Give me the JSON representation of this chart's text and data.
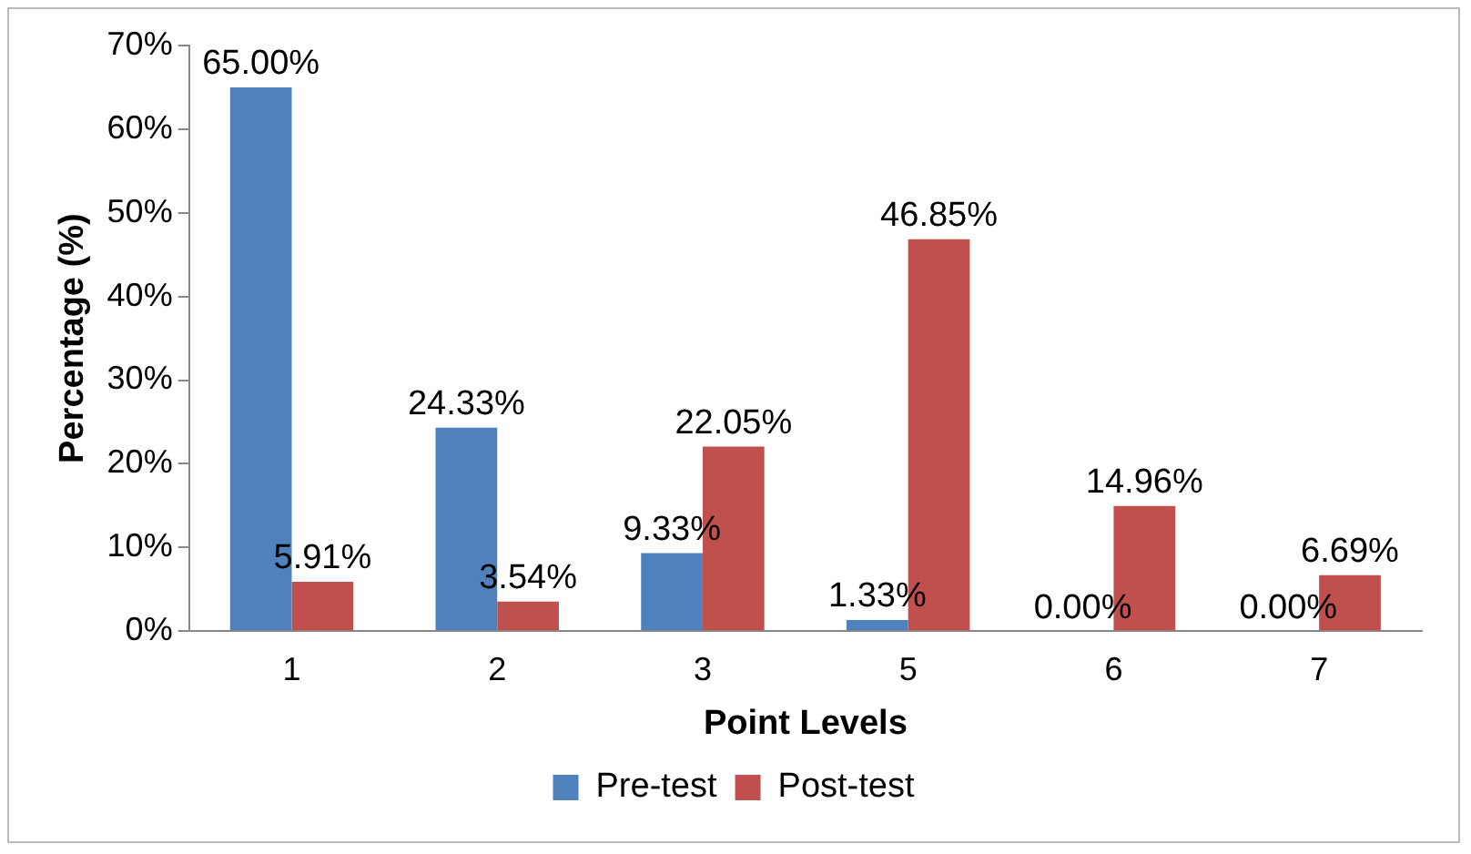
{
  "chart_data": {
    "type": "bar",
    "xlabel": "Point Levels",
    "ylabel": "Percentage (%)",
    "categories": [
      "1",
      "2",
      "3",
      "5",
      "6",
      "7"
    ],
    "series": [
      {
        "name": "Pre-test",
        "color": "#4f81bd",
        "values": [
          65.0,
          24.33,
          9.33,
          1.33,
          0.0,
          0.0
        ],
        "value_labels": [
          "65.00%",
          "24.33%",
          "9.33%",
          "1.33%",
          "0.00%",
          "0.00%"
        ]
      },
      {
        "name": "Post-test",
        "color": "#c0504d",
        "values": [
          5.91,
          3.54,
          22.05,
          46.85,
          14.96,
          6.69
        ],
        "value_labels": [
          "5.91%",
          "3.54%",
          "22.05%",
          "46.85%",
          "14.96%",
          "6.69%"
        ]
      }
    ],
    "ylim": [
      0,
      70
    ],
    "yticks": [
      {
        "value": 0,
        "label": "0%"
      },
      {
        "value": 10,
        "label": "10%"
      },
      {
        "value": 20,
        "label": "20%"
      },
      {
        "value": 30,
        "label": "30%"
      },
      {
        "value": 40,
        "label": "40%"
      },
      {
        "value": 50,
        "label": "50%"
      },
      {
        "value": 60,
        "label": "60%"
      },
      {
        "value": 70,
        "label": "70%"
      }
    ],
    "grid": false,
    "legend": "bottom"
  }
}
